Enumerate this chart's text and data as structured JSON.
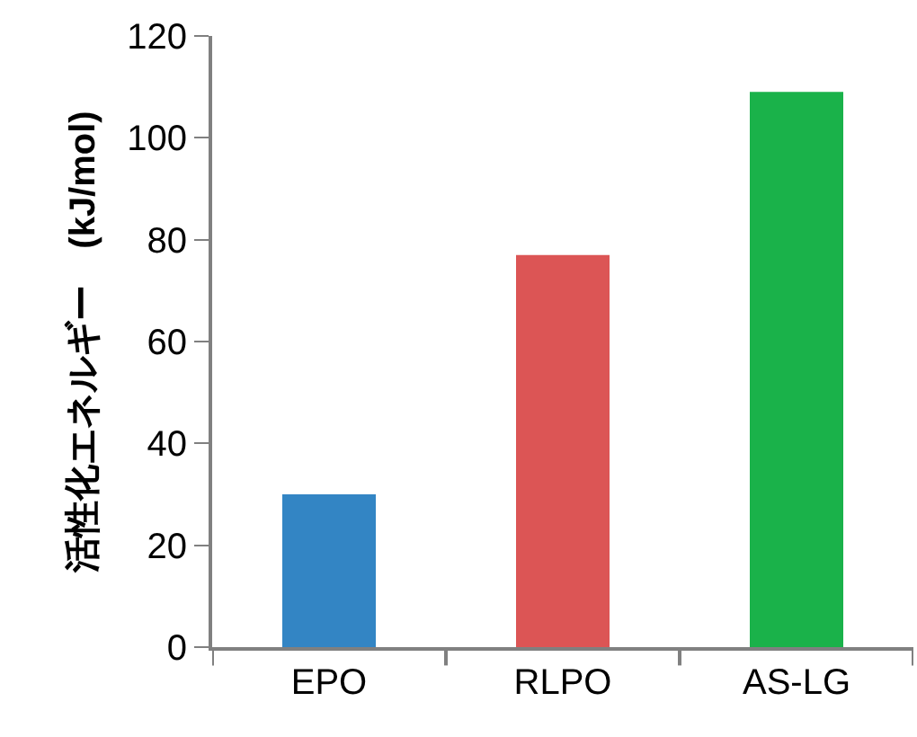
{
  "chart_data": {
    "type": "bar",
    "ylabel": "活性化エネルギー　(kJ/mol)",
    "categories": [
      "EPO",
      "RLPO",
      "AS-LG"
    ],
    "values": [
      30,
      77,
      109
    ],
    "colors": [
      "#3385c4",
      "#dc5555",
      "#1ab24a"
    ],
    "ylim": [
      0,
      120
    ],
    "yticks": [
      0,
      20,
      40,
      60,
      80,
      100,
      120
    ],
    "grid": false,
    "legend": false
  }
}
